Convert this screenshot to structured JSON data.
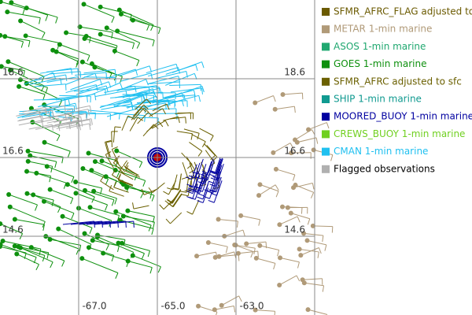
{
  "legend": [
    {
      "label": "SFMR_AFRC_FLAG adjusted to",
      "color": "#6b5a00"
    },
    {
      "label": "METAR 1-min marine",
      "color": "#b09a78"
    },
    {
      "label": "ASOS 1-min marine",
      "color": "#20a870"
    },
    {
      "label": "GOES 1-min marine",
      "color": "#0e900e"
    },
    {
      "label": "SFMR_AFRC adjusted to sfc",
      "color": "#6b6000"
    },
    {
      "label": "SHIP 1-min marine",
      "color": "#109a90"
    },
    {
      "label": "MOORED_BUOY 1-min marine",
      "color": "#0000a0"
    },
    {
      "label": "CREWS_BUOY 1-min marine",
      "color": "#70d020"
    },
    {
      "label": "CMAN 1-min marine",
      "color": "#20c0f0"
    },
    {
      "label": "Flagged observations",
      "color": "#b0b0b0",
      "text_color": "#000000"
    }
  ],
  "grid": {
    "lat_labels": [
      "18.6",
      "16.6",
      "14.6"
    ],
    "lon_labels": [
      "-67.0",
      "-65.0",
      "-63.0"
    ]
  }
}
